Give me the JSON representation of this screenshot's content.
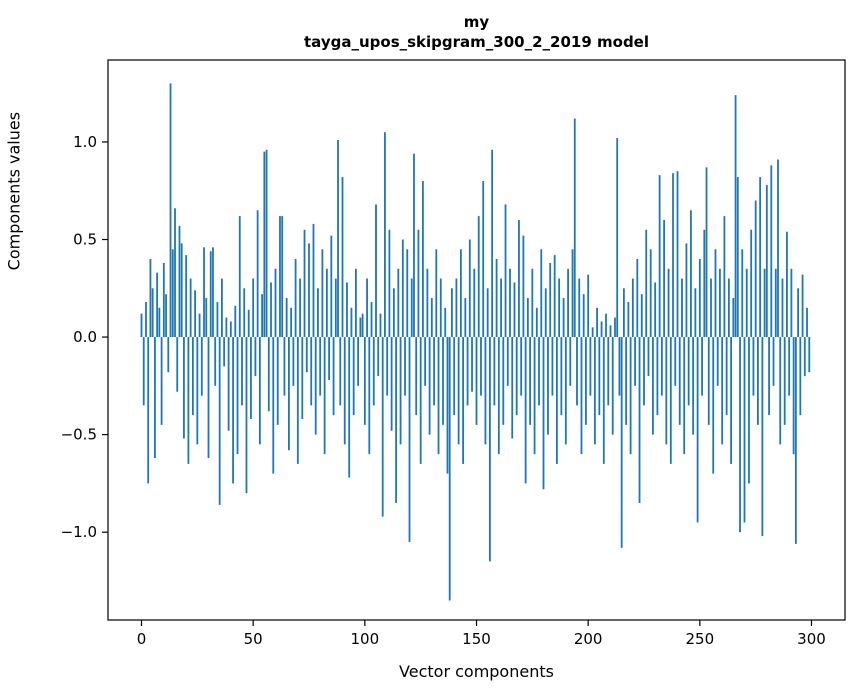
{
  "chart_data": {
    "type": "bar",
    "title_line1": "my",
    "title_line2": "tayga_upos_skipgram_300_2_2019 model",
    "xlabel": "Vector components",
    "ylabel": "Components values",
    "xlim": [
      -15,
      315
    ],
    "ylim": [
      -1.45,
      1.42
    ],
    "x_ticks": [
      0,
      50,
      100,
      150,
      200,
      250,
      300
    ],
    "x_tick_labels": [
      "0",
      "50",
      "100",
      "150",
      "200",
      "250",
      "300"
    ],
    "y_ticks": [
      -1.0,
      -0.5,
      0.0,
      0.5,
      1.0
    ],
    "y_tick_labels": [
      "−1.0",
      "−0.5",
      "0.0",
      "0.5",
      "1.0"
    ],
    "bar_color": "#1f77b4",
    "grid": false,
    "legend": "none",
    "x_start": 0,
    "values": [
      0.12,
      -0.35,
      0.18,
      -0.75,
      0.4,
      0.25,
      -0.62,
      0.33,
      0.15,
      -0.45,
      0.38,
      0.22,
      -0.18,
      1.3,
      0.45,
      0.66,
      -0.28,
      0.57,
      0.48,
      -0.52,
      0.42,
      -0.65,
      0.3,
      -0.4,
      0.24,
      -0.55,
      0.12,
      -0.3,
      0.46,
      0.2,
      -0.62,
      0.44,
      0.46,
      -0.25,
      0.18,
      -0.86,
      0.3,
      -0.15,
      0.1,
      -0.48,
      0.08,
      -0.75,
      0.16,
      -0.6,
      0.62,
      -0.35,
      0.25,
      -0.8,
      0.14,
      -0.42,
      0.3,
      -0.2,
      0.65,
      -0.55,
      0.22,
      0.95,
      0.96,
      -0.38,
      0.28,
      -0.7,
      0.35,
      -0.45,
      0.62,
      0.62,
      -0.3,
      0.2,
      -0.58,
      0.15,
      -0.25,
      0.4,
      -0.65,
      0.3,
      -0.42,
      0.55,
      -0.18,
      0.48,
      -0.35,
      0.58,
      -0.5,
      0.25,
      -0.3,
      0.45,
      -0.6,
      0.35,
      -0.22,
      0.52,
      -0.4,
      0.3,
      1.01,
      -0.35,
      0.82,
      -0.55,
      0.28,
      -0.72,
      0.15,
      -0.4,
      0.35,
      -0.25,
      0.1,
      0.12,
      -0.45,
      0.3,
      -0.6,
      0.18,
      -0.35,
      0.68,
      -0.2,
      0.12,
      -0.92,
      1.05,
      -0.3,
      0.55,
      -0.48,
      0.25,
      -0.85,
      0.35,
      -0.55,
      0.5,
      -0.3,
      0.45,
      -1.05,
      0.3,
      0.94,
      -0.4,
      0.55,
      -0.65,
      0.8,
      -0.25,
      0.35,
      -0.5,
      0.2,
      -0.35,
      0.45,
      -0.6,
      0.3,
      -0.45,
      0.15,
      -0.7,
      -1.35,
      0.25,
      -0.4,
      0.3,
      -0.55,
      0.45,
      -0.65,
      0.2,
      -0.35,
      0.5,
      -0.28,
      0.35,
      -0.45,
      0.62,
      -0.3,
      0.8,
      -0.55,
      0.25,
      -1.15,
      0.96,
      -0.35,
      0.4,
      -0.6,
      0.3,
      -0.45,
      0.68,
      -0.25,
      0.35,
      -0.52,
      0.28,
      -0.4,
      0.6,
      -0.3,
      0.52,
      -0.75,
      0.2,
      -0.45,
      0.35,
      -0.6,
      0.15,
      -0.35,
      0.45,
      -0.78,
      0.25,
      -0.5,
      0.38,
      -0.3,
      0.42,
      -0.65,
      0.3,
      -0.4,
      0.2,
      -0.55,
      0.35,
      -0.25,
      0.45,
      1.12,
      -0.35,
      0.3,
      -0.6,
      0.22,
      -0.45,
      0.32,
      -0.3,
      0.05,
      -0.55,
      0.15,
      -0.4,
      0.08,
      -0.65,
      0.12,
      -0.35,
      0.06,
      -0.5,
      0.1,
      1.02,
      -0.3,
      -1.08,
      0.25,
      -0.45,
      0.18,
      -0.6,
      0.3,
      -0.25,
      0.4,
      -0.85,
      0.22,
      -0.35,
      0.55,
      -0.2,
      0.45,
      -0.5,
      0.28,
      -0.4,
      0.83,
      -0.3,
      0.6,
      -0.55,
      0.35,
      -0.65,
      0.84,
      -0.25,
      0.85,
      -0.45,
      0.3,
      -0.6,
      0.48,
      -0.35,
      0.65,
      -0.5,
      0.25,
      -0.95,
      0.4,
      -0.3,
      0.55,
      0.87,
      -0.45,
      0.3,
      -0.7,
      0.45,
      -0.25,
      0.35,
      -0.55,
      0.62,
      -0.4,
      0.3,
      -0.65,
      0.2,
      1.24,
      0.82,
      -1.0,
      0.45,
      -0.95,
      0.35,
      -0.75,
      0.55,
      -0.3,
      0.7,
      -0.45,
      0.82,
      -1.02,
      0.35,
      0.78,
      -0.4,
      0.88,
      -0.25,
      0.35,
      0.91,
      -0.55,
      0.3,
      -0.45,
      0.54,
      -0.3,
      0.35,
      -0.6,
      -1.06,
      0.25,
      -0.4,
      0.32,
      -0.2,
      0.15,
      -0.18
    ]
  }
}
